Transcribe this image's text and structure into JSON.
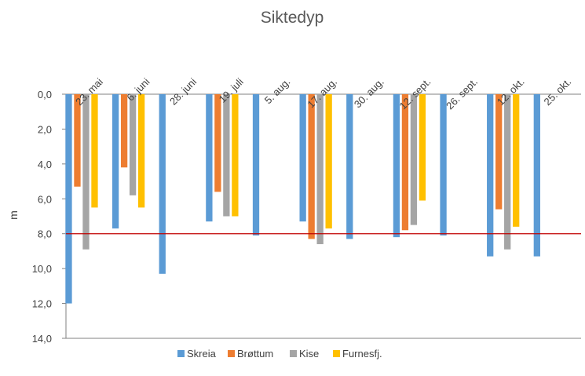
{
  "chart_data": {
    "type": "bar",
    "title": "Siktedyp",
    "ylabel": "m",
    "xlabel": "",
    "categories": [
      "23. mai",
      "6. juni",
      "28. juni",
      "19. juli",
      "5. aug.",
      "17. aug.",
      "30. aug.",
      "12. sept.",
      "26. sept.",
      "12. okt.",
      "25. okt."
    ],
    "series": [
      {
        "name": "Skreia",
        "color": "#5B9BD5",
        "values": [
          12.0,
          7.7,
          10.3,
          7.3,
          8.1,
          7.3,
          8.3,
          8.2,
          8.1,
          9.3,
          9.3
        ]
      },
      {
        "name": "Brøttum",
        "color": "#ED7D31",
        "values": [
          5.3,
          4.2,
          null,
          5.6,
          null,
          8.3,
          null,
          7.8,
          null,
          6.6,
          null
        ]
      },
      {
        "name": "Kise",
        "color": "#A5A5A5",
        "values": [
          8.9,
          5.8,
          null,
          7.0,
          null,
          8.6,
          null,
          7.5,
          null,
          8.9,
          null
        ]
      },
      {
        "name": "Furnesfj.",
        "color": "#FFC000",
        "values": [
          6.5,
          6.5,
          null,
          7.0,
          null,
          7.7,
          null,
          6.1,
          null,
          7.6,
          null
        ]
      }
    ],
    "y_axis": {
      "reversed": true,
      "ylim": [
        0,
        14
      ],
      "tick_labels": [
        "0,0",
        "2,0",
        "4,0",
        "6,0",
        "8,0",
        "10,0",
        "12,0",
        "14,0"
      ]
    },
    "reference_line": {
      "y": 8.0,
      "color": "#C00000"
    },
    "x_axis_position": "top",
    "legend_position": "bottom",
    "grid": false
  }
}
